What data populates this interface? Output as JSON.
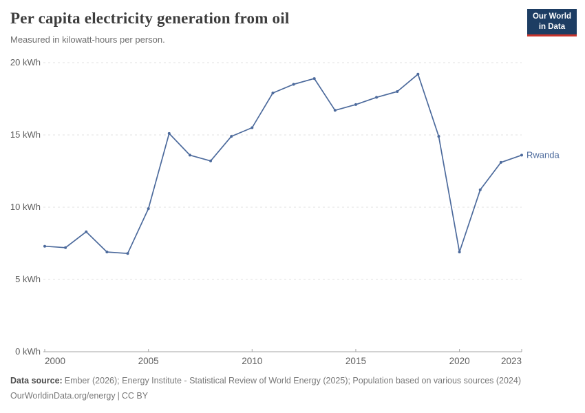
{
  "header": {
    "title": "Per capita electricity generation from oil",
    "subtitle": "Measured in kilowatt-hours per person."
  },
  "logo": {
    "line1": "Our World",
    "line2": "in Data",
    "bg_color": "#1d3d63",
    "accent_color": "#c8332b"
  },
  "chart_data": {
    "type": "line",
    "title": "Per capita electricity generation from oil",
    "unit": "kWh",
    "x": [
      2000,
      2001,
      2002,
      2003,
      2004,
      2005,
      2006,
      2007,
      2008,
      2009,
      2010,
      2011,
      2012,
      2013,
      2014,
      2015,
      2016,
      2017,
      2018,
      2019,
      2020,
      2021,
      2022,
      2023
    ],
    "series": [
      {
        "name": "Rwanda",
        "color": "#4c6a9c",
        "values": [
          7.3,
          7.2,
          8.3,
          6.9,
          6.8,
          9.9,
          15.1,
          13.6,
          13.2,
          14.9,
          15.5,
          17.9,
          18.5,
          18.9,
          16.7,
          17.1,
          17.6,
          18.0,
          19.2,
          14.9,
          6.9,
          11.2,
          13.1,
          13.6
        ]
      }
    ],
    "xlim": [
      2000,
      2023
    ],
    "ylim": [
      0,
      20
    ],
    "xticks": [
      2000,
      2005,
      2010,
      2015,
      2020,
      2023
    ],
    "yticks": [
      0,
      5,
      10,
      15,
      20
    ],
    "ytick_suffix": " kWh",
    "grid": "horizontal-dashed",
    "legend_position": "end-of-line-label"
  },
  "colors": {
    "line": "#4c6a9c",
    "grid": "#e0e0e0",
    "axis": "#a6a6a6",
    "tick_text": "#5e5e5e"
  },
  "footer": {
    "source_label": "Data source:",
    "source_text": "Ember (2026); Energy Institute - Statistical Review of World Energy (2025); Population based on various sources (2024)",
    "link": "OurWorldinData.org/energy",
    "separator": "|",
    "license": "CC BY"
  }
}
